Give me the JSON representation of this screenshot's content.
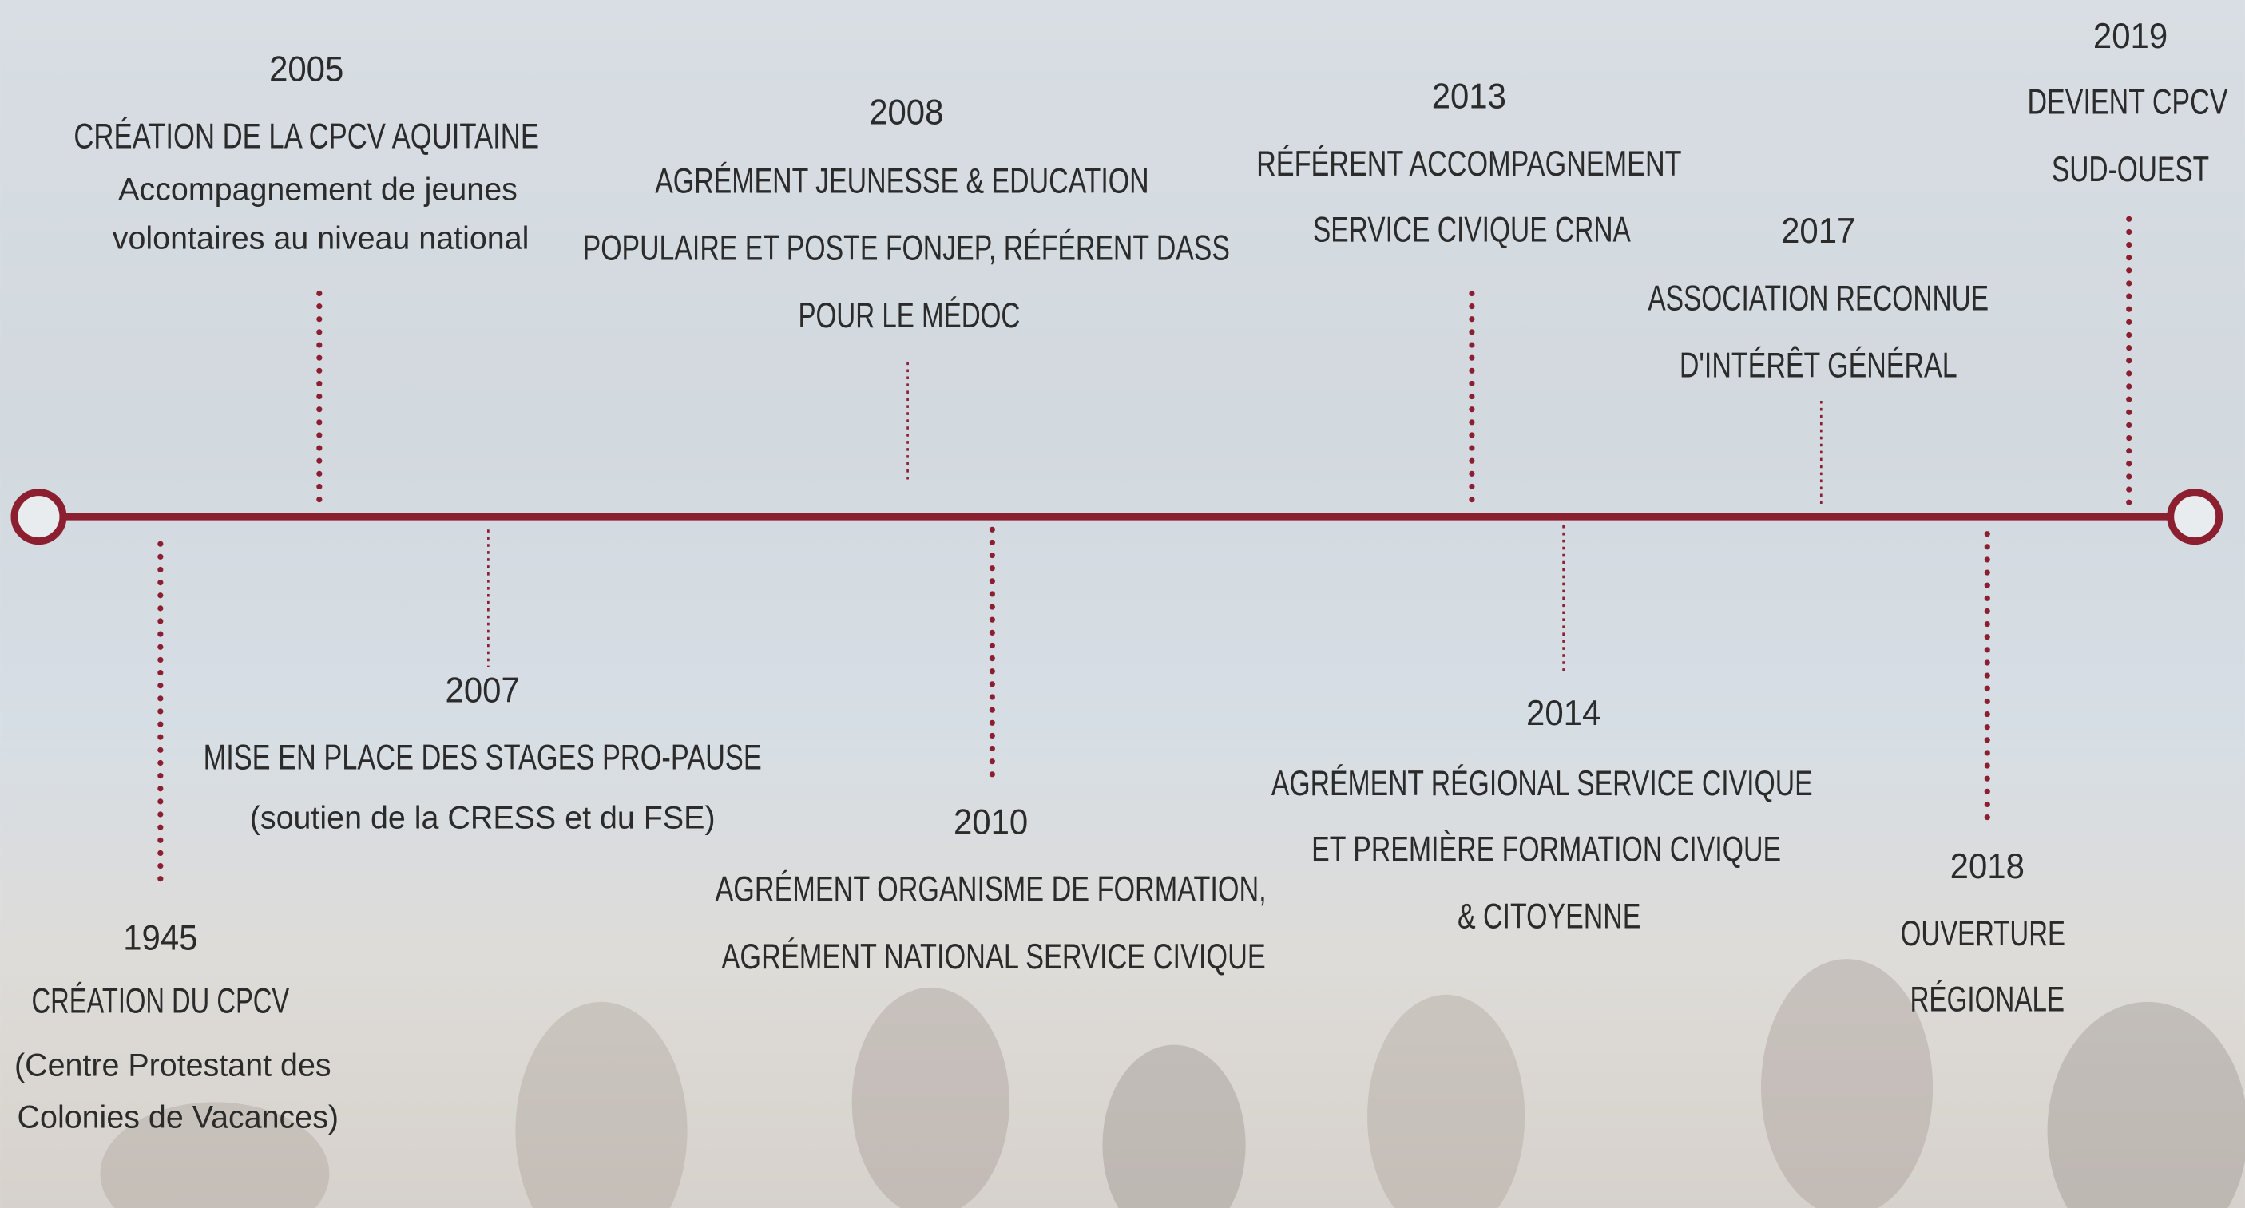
{
  "events": [
    {
      "year": "1945",
      "title": [
        "CRÉATION DU CPCV"
      ],
      "description": [
        "(Centre Protestant des",
        "Colonies de Vacances)"
      ]
    },
    {
      "year": "2005",
      "title": [
        "CRÉATION DE LA CPCV AQUITAINE"
      ],
      "description": [
        "Accompagnement de jeunes",
        "volontaires au niveau national"
      ]
    },
    {
      "year": "2007",
      "title": [
        "MISE EN PLACE DES STAGES PRO-PAUSE"
      ],
      "description": [
        "(soutien de la CRESS et du FSE)"
      ]
    },
    {
      "year": "2008",
      "title": [
        "AGRÉMENT JEUNESSE & EDUCATION",
        "POPULAIRE ET POSTE FONJEP, RÉFÉRENT DASS",
        "POUR LE MÉDOC"
      ]
    },
    {
      "year": "2010",
      "title": [
        "AGRÉMENT ORGANISME DE FORMATION,",
        "AGRÉMENT NATIONAL SERVICE CIVIQUE"
      ]
    },
    {
      "year": "2013",
      "title": [
        "RÉFÉRENT ACCOMPAGNEMENT",
        "SERVICE CIVIQUE CRNA"
      ]
    },
    {
      "year": "2014",
      "title": [
        "AGRÉMENT RÉGIONAL SERVICE CIVIQUE",
        "ET PREMIÈRE FORMATION CIVIQUE",
        "& CITOYENNE"
      ]
    },
    {
      "year": "2017",
      "title": [
        "ASSOCIATION RECONNUE",
        "D'INTÉRÊT GÉNÉRAL"
      ]
    },
    {
      "year": "2018",
      "title": [
        "OUVERTURE",
        "RÉGIONALE"
      ]
    },
    {
      "year": "2019",
      "title": [
        "DEVIENT CPCV",
        "SUD-OUEST"
      ]
    }
  ]
}
